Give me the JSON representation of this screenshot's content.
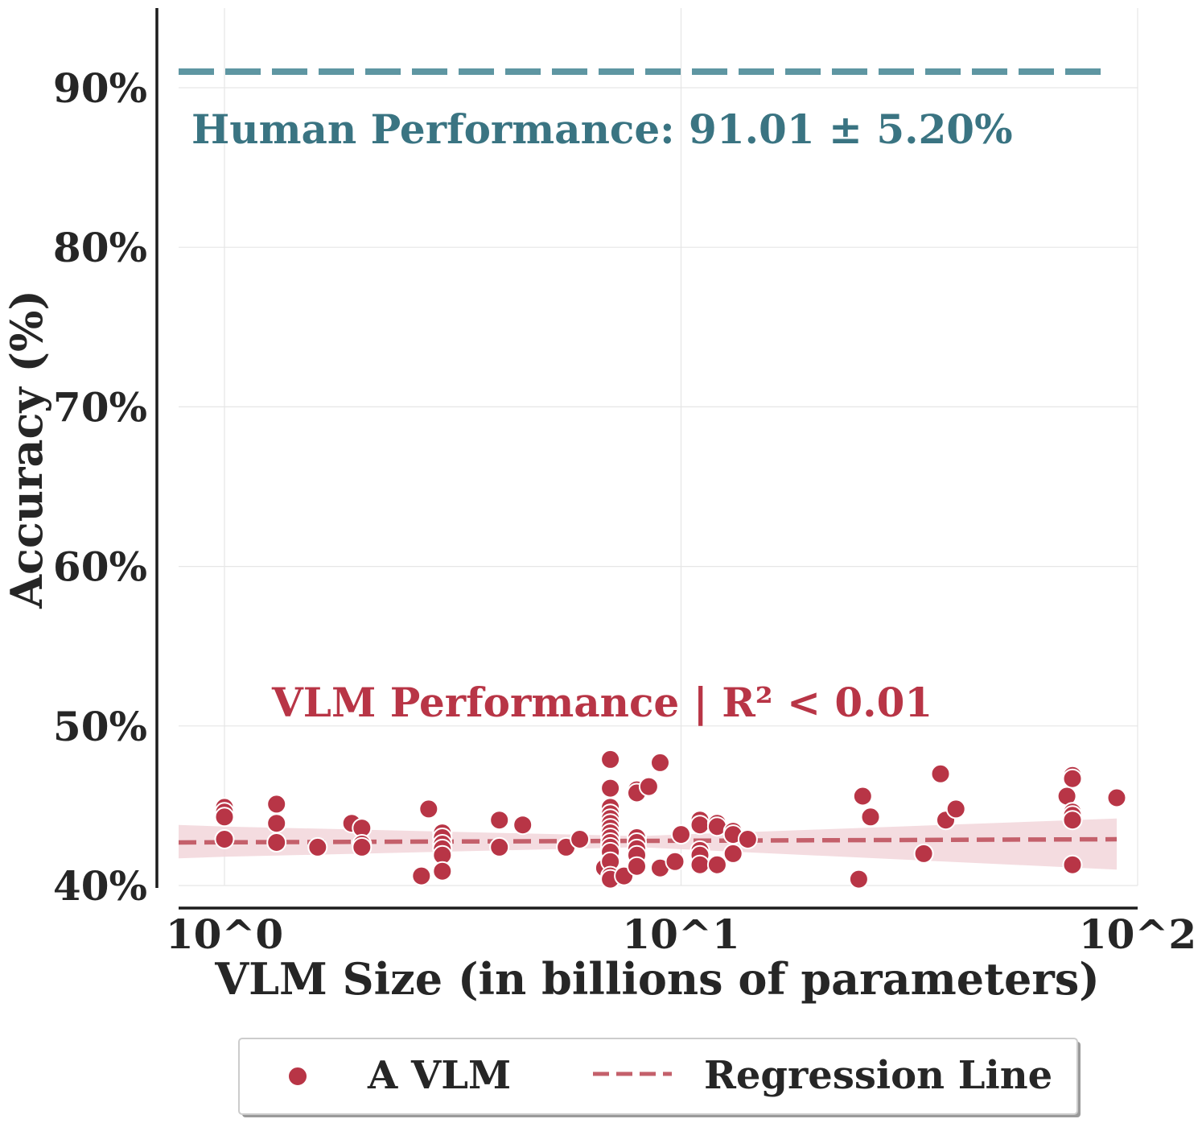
{
  "chart_data": {
    "type": "scatter",
    "xlabel": "VLM Size (in billions of parameters)",
    "ylabel": "Accuracy (%)",
    "x_scale": "log",
    "xlim": [
      0.78,
      100
    ],
    "ylim": [
      40,
      95
    ],
    "x_ticks": [
      {
        "value": 1,
        "label": "10^0"
      },
      {
        "value": 10,
        "label": "10^1"
      },
      {
        "value": 100,
        "label": "10^2"
      }
    ],
    "y_ticks": [
      {
        "value": 40,
        "label": "40%"
      },
      {
        "value": 50,
        "label": "50%"
      },
      {
        "value": 60,
        "label": "60%"
      },
      {
        "value": 70,
        "label": "70%"
      },
      {
        "value": 80,
        "label": "80%"
      },
      {
        "value": 90,
        "label": "90%"
      }
    ],
    "grid": true,
    "legend": {
      "placement": "bottom-center",
      "entries": [
        {
          "label": "A VLM",
          "marker": "circle",
          "color": "#b83546"
        },
        {
          "label": "Regression Line",
          "marker": "dashed-line",
          "color": "#c4606b"
        }
      ]
    },
    "annotations": {
      "human": {
        "text": "Human Performance: 91.01 ± 5.20%",
        "color": "#3a7482",
        "line_color": "#5e96a2",
        "y": 91.01
      },
      "vlm": {
        "text": "VLM Performance | R² < 0.01",
        "color": "#b83546"
      }
    },
    "regression": {
      "x_range": [
        1.0,
        90.0
      ],
      "y_start": 42.7,
      "y_end": 42.9,
      "ci_lower": [
        41.8,
        42.4,
        41.0
      ],
      "ci_upper": [
        43.7,
        43.1,
        44.2
      ],
      "color": "#c4606b",
      "ci_color": "#f2d6da"
    },
    "points": [
      {
        "x": 1.0,
        "y": 44.9
      },
      {
        "x": 1.0,
        "y": 44.6
      },
      {
        "x": 1.0,
        "y": 44.3
      },
      {
        "x": 1.0,
        "y": 42.9
      },
      {
        "x": 1.3,
        "y": 45.1
      },
      {
        "x": 1.3,
        "y": 43.9
      },
      {
        "x": 1.3,
        "y": 42.7
      },
      {
        "x": 1.6,
        "y": 42.4
      },
      {
        "x": 1.9,
        "y": 43.9
      },
      {
        "x": 2.0,
        "y": 43.6
      },
      {
        "x": 2.0,
        "y": 42.6
      },
      {
        "x": 2.0,
        "y": 42.4
      },
      {
        "x": 2.8,
        "y": 44.8
      },
      {
        "x": 3.0,
        "y": 43.3
      },
      {
        "x": 3.0,
        "y": 43.0
      },
      {
        "x": 3.0,
        "y": 42.6
      },
      {
        "x": 3.0,
        "y": 42.3
      },
      {
        "x": 3.0,
        "y": 41.9
      },
      {
        "x": 3.0,
        "y": 40.9
      },
      {
        "x": 2.7,
        "y": 40.6
      },
      {
        "x": 4.0,
        "y": 44.1
      },
      {
        "x": 4.0,
        "y": 42.4
      },
      {
        "x": 4.5,
        "y": 43.8
      },
      {
        "x": 5.6,
        "y": 42.4
      },
      {
        "x": 6.0,
        "y": 42.9
      },
      {
        "x": 6.8,
        "y": 41.1
      },
      {
        "x": 7.0,
        "y": 47.9
      },
      {
        "x": 7.0,
        "y": 46.1
      },
      {
        "x": 7.0,
        "y": 44.9
      },
      {
        "x": 7.0,
        "y": 44.5
      },
      {
        "x": 7.0,
        "y": 44.2
      },
      {
        "x": 7.0,
        "y": 43.9
      },
      {
        "x": 7.0,
        "y": 43.6
      },
      {
        "x": 7.0,
        "y": 43.3
      },
      {
        "x": 7.0,
        "y": 43.0
      },
      {
        "x": 7.0,
        "y": 42.7
      },
      {
        "x": 7.0,
        "y": 42.4
      },
      {
        "x": 7.0,
        "y": 42.1
      },
      {
        "x": 7.0,
        "y": 41.5
      },
      {
        "x": 7.0,
        "y": 40.6
      },
      {
        "x": 7.0,
        "y": 40.4
      },
      {
        "x": 7.5,
        "y": 40.6
      },
      {
        "x": 8.0,
        "y": 46.0
      },
      {
        "x": 8.0,
        "y": 45.8
      },
      {
        "x": 8.0,
        "y": 43.0
      },
      {
        "x": 8.0,
        "y": 42.7
      },
      {
        "x": 8.0,
        "y": 42.3
      },
      {
        "x": 8.0,
        "y": 41.9
      },
      {
        "x": 8.0,
        "y": 41.2
      },
      {
        "x": 8.5,
        "y": 46.2
      },
      {
        "x": 9.0,
        "y": 47.7
      },
      {
        "x": 9.0,
        "y": 41.1
      },
      {
        "x": 9.7,
        "y": 41.5
      },
      {
        "x": 10.0,
        "y": 43.2
      },
      {
        "x": 11.0,
        "y": 44.1
      },
      {
        "x": 11.0,
        "y": 43.8
      },
      {
        "x": 11.0,
        "y": 42.2
      },
      {
        "x": 11.0,
        "y": 41.9
      },
      {
        "x": 11.0,
        "y": 41.3
      },
      {
        "x": 12.0,
        "y": 43.9
      },
      {
        "x": 12.0,
        "y": 43.7
      },
      {
        "x": 12.0,
        "y": 41.3
      },
      {
        "x": 13.0,
        "y": 43.4
      },
      {
        "x": 13.0,
        "y": 43.2
      },
      {
        "x": 13.0,
        "y": 42.0
      },
      {
        "x": 14.0,
        "y": 42.9
      },
      {
        "x": 24.5,
        "y": 40.4
      },
      {
        "x": 25.0,
        "y": 45.6
      },
      {
        "x": 26.0,
        "y": 44.3
      },
      {
        "x": 34.0,
        "y": 42.0
      },
      {
        "x": 37.0,
        "y": 47.0
      },
      {
        "x": 38.0,
        "y": 44.1
      },
      {
        "x": 40.0,
        "y": 44.8
      },
      {
        "x": 70.0,
        "y": 45.6
      },
      {
        "x": 72.0,
        "y": 46.9
      },
      {
        "x": 72.0,
        "y": 46.7
      },
      {
        "x": 72.0,
        "y": 44.6
      },
      {
        "x": 72.0,
        "y": 44.4
      },
      {
        "x": 72.0,
        "y": 44.1
      },
      {
        "x": 72.0,
        "y": 41.3
      },
      {
        "x": 90.0,
        "y": 45.5
      }
    ]
  }
}
